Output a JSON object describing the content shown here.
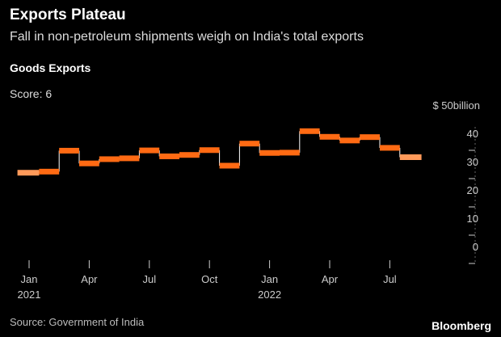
{
  "header": {
    "title": "Exports Plateau",
    "subtitle": "Fall in non-petroleum shipments weigh on India's total exports",
    "series_label": "Goods Exports",
    "score": "Score: 6"
  },
  "footer": {
    "source": "Source: Government of India",
    "brand": "Bloomberg"
  },
  "colors": {
    "background": "#000000",
    "bar": "#ff6a13",
    "bar_light": "#ff9a5a",
    "connector": "#ffffff",
    "axis": "#cccccc"
  },
  "chart_data": {
    "type": "step",
    "title": "Goods Exports",
    "ylabel": "$50billion",
    "unit": "billion USD",
    "ylim": [
      0,
      50
    ],
    "y_ticks": [
      {
        "value": 50,
        "label": "$ 50billion"
      },
      {
        "value": 40,
        "label": "40"
      },
      {
        "value": 30,
        "label": "30"
      },
      {
        "value": 20,
        "label": "20"
      },
      {
        "value": 10,
        "label": "10"
      },
      {
        "value": 0,
        "label": "0"
      }
    ],
    "x_ticks": [
      {
        "index": 0,
        "label": "Jan",
        "sublabel": "2021"
      },
      {
        "index": 3,
        "label": "Apr",
        "sublabel": ""
      },
      {
        "index": 6,
        "label": "Jul",
        "sublabel": ""
      },
      {
        "index": 9,
        "label": "Oct",
        "sublabel": ""
      },
      {
        "index": 12,
        "label": "Jan",
        "sublabel": "2022"
      },
      {
        "index": 15,
        "label": "Apr",
        "sublabel": ""
      },
      {
        "index": 18,
        "label": "Jul",
        "sublabel": ""
      }
    ],
    "categories": [
      "Jan 2021",
      "Feb 2021",
      "Mar 2021",
      "Apr 2021",
      "May 2021",
      "Jun 2021",
      "Jul 2021",
      "Aug 2021",
      "Sep 2021",
      "Oct 2021",
      "Nov 2021",
      "Dec 2021",
      "Jan 2022",
      "Feb 2022",
      "Mar 2022",
      "Apr 2022",
      "May 2022",
      "Jun 2022",
      "Jul 2022",
      "Aug 2022"
    ],
    "values": [
      27.5,
      27.9,
      35.3,
      30.8,
      32.3,
      32.6,
      35.4,
      33.3,
      33.8,
      35.5,
      30.0,
      37.8,
      34.5,
      34.6,
      42.2,
      40.2,
      38.9,
      40.1,
      36.3,
      33.0
    ]
  }
}
